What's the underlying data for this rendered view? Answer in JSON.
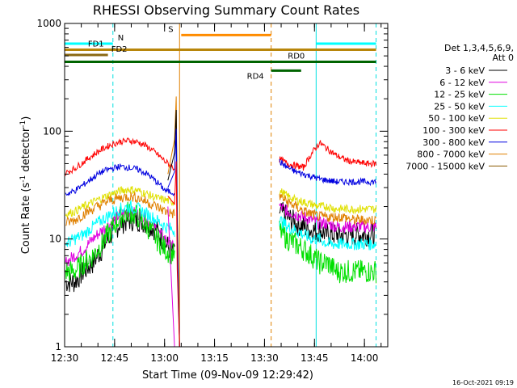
{
  "chart_data": {
    "type": "line",
    "title": "RHESSI Observing Summary Count Rates",
    "xlabel": "Start Time (09-Nov-09 12:29:42)",
    "ylabel": "Count Rate (s-1 detector-1)",
    "ylabel_parts": {
      "prefix": "Count Rate (s",
      "sup1": "-1",
      "mid": " detector",
      "sup2": "-1",
      "suffix": ")"
    },
    "y_scale": "log",
    "ylim": [
      1,
      1000
    ],
    "xlim_minutes": [
      0,
      97
    ],
    "x_ticks": [
      {
        "minutes": 0,
        "label": "12:30"
      },
      {
        "minutes": 15,
        "label": "12:45"
      },
      {
        "minutes": 30,
        "label": "13:00"
      },
      {
        "minutes": 45,
        "label": "13:15"
      },
      {
        "minutes": 60,
        "label": "13:30"
      },
      {
        "minutes": 75,
        "label": "13:45"
      },
      {
        "minutes": 90,
        "label": "14:00"
      }
    ],
    "y_ticks": [
      {
        "value": 1,
        "label": "1"
      },
      {
        "value": 10,
        "label": "10"
      },
      {
        "value": 100,
        "label": "100"
      },
      {
        "value": 1000,
        "label": "1000"
      }
    ],
    "legend_title": [
      "Det 1,3,4,5,6,9,",
      "Att 0"
    ],
    "legend_position": "right",
    "series": [
      {
        "name": "3 - 6 keV",
        "color": "#000000",
        "values_before": [
          4,
          4,
          5,
          6,
          8,
          11,
          14,
          15,
          15,
          14,
          12,
          9,
          7
        ],
        "values_after": [
          18,
          16,
          14,
          13,
          12,
          12,
          11,
          11,
          11,
          11,
          11,
          11,
          11
        ]
      },
      {
        "name": "6 - 12 keV",
        "color": "#e000e0",
        "values_before": [
          6,
          7,
          8,
          10,
          12,
          14,
          17,
          18,
          17,
          15,
          12,
          10,
          8
        ],
        "values_after": [
          20,
          18,
          17,
          16,
          15,
          14,
          14,
          13,
          13,
          13,
          13,
          13,
          13
        ]
      },
      {
        "name": "12 - 25 keV",
        "color": "#00e000",
        "values_before": [
          5,
          5,
          6,
          7,
          9,
          12,
          16,
          18,
          16,
          13,
          10,
          8,
          7
        ],
        "values_after": [
          12,
          10,
          9,
          8,
          7,
          6,
          6,
          5,
          5,
          5,
          5,
          5,
          5
        ]
      },
      {
        "name": "25 - 50 keV",
        "color": "#00ffff",
        "values_before": [
          9,
          10,
          11,
          13,
          15,
          17,
          19,
          20,
          19,
          17,
          15,
          13,
          12
        ],
        "values_after": [
          15,
          13,
          12,
          11,
          10,
          10,
          9,
          9,
          9,
          9,
          9,
          9,
          9
        ]
      },
      {
        "name": "50 - 100 keV",
        "color": "#e0e000",
        "values_before": [
          17,
          18,
          20,
          22,
          24,
          26,
          28,
          29,
          28,
          26,
          24,
          23,
          22
        ],
        "values_after": [
          28,
          25,
          23,
          22,
          21,
          20,
          20,
          19,
          19,
          19,
          19,
          19,
          19
        ]
      },
      {
        "name": "100 - 300 keV",
        "color": "#ff0000",
        "values_before": [
          41,
          45,
          52,
          60,
          68,
          75,
          80,
          82,
          79,
          72,
          62,
          52,
          45
        ],
        "values_after": [
          55,
          50,
          48,
          46,
          62,
          78,
          68,
          60,
          55,
          52,
          51,
          50,
          50
        ]
      },
      {
        "name": "300 - 800 keV",
        "color": "#0000e0",
        "values_before": [
          26,
          28,
          32,
          37,
          42,
          45,
          47,
          46,
          44,
          40,
          34,
          28,
          27
        ],
        "values_after": [
          52,
          46,
          42,
          40,
          38,
          36,
          35,
          34,
          34,
          34,
          34,
          34,
          34
        ]
      },
      {
        "name": "800 - 7000 keV",
        "color": "#e08000",
        "values_before": [
          14,
          15,
          17,
          19,
          21,
          23,
          24,
          25,
          24,
          22,
          20,
          18,
          17
        ],
        "values_after": [
          25,
          22,
          20,
          18,
          17,
          16,
          16,
          16,
          16,
          15,
          15,
          15,
          15
        ]
      },
      {
        "name": "7000 - 15000 keV",
        "color": "#8b5a00",
        "values_before": [],
        "values_after": []
      }
    ],
    "time_markers": [
      {
        "minutes": 14.5,
        "color": "#00e0e0",
        "style": "dashed"
      },
      {
        "minutes": 34.5,
        "color": "#e08000",
        "style": "solid"
      },
      {
        "minutes": 62.0,
        "color": "#e08000",
        "style": "dashed"
      },
      {
        "minutes": 75.5,
        "color": "#00e0e0",
        "style": "solid"
      },
      {
        "minutes": 93.5,
        "color": "#00e0e0",
        "style": "dashed"
      }
    ],
    "flag_bars": [
      {
        "label": "N",
        "color": "#00ffff",
        "segments": [
          [
            0,
            14.5
          ],
          [
            75.5,
            93.5
          ]
        ],
        "level": 650
      },
      {
        "label": "S",
        "color": "#ff8c00",
        "segments": [
          [
            35,
            62
          ]
        ],
        "level": 780
      },
      {
        "label": "FD1",
        "color": "#b8860b",
        "segments": [
          [
            0,
            93.5
          ]
        ],
        "level": 570
      },
      {
        "label": "FD2",
        "color": "#8b6914",
        "segments": [
          [
            0,
            13
          ]
        ],
        "level": 510
      },
      {
        "label": "RD0",
        "color": "#006400",
        "segments": [
          [
            0,
            93.5
          ]
        ],
        "level": 440
      },
      {
        "label": "RD4",
        "color": "#006400",
        "segments": [
          [
            62,
            71
          ]
        ],
        "level": 365
      }
    ],
    "flare_spike": {
      "start_minutes": 31,
      "peak_minutes": 33.5,
      "end_minutes": 34.5,
      "peak_value": 210
    }
  },
  "footer": {
    "timestamp": "16-Oct-2021 09:19"
  }
}
